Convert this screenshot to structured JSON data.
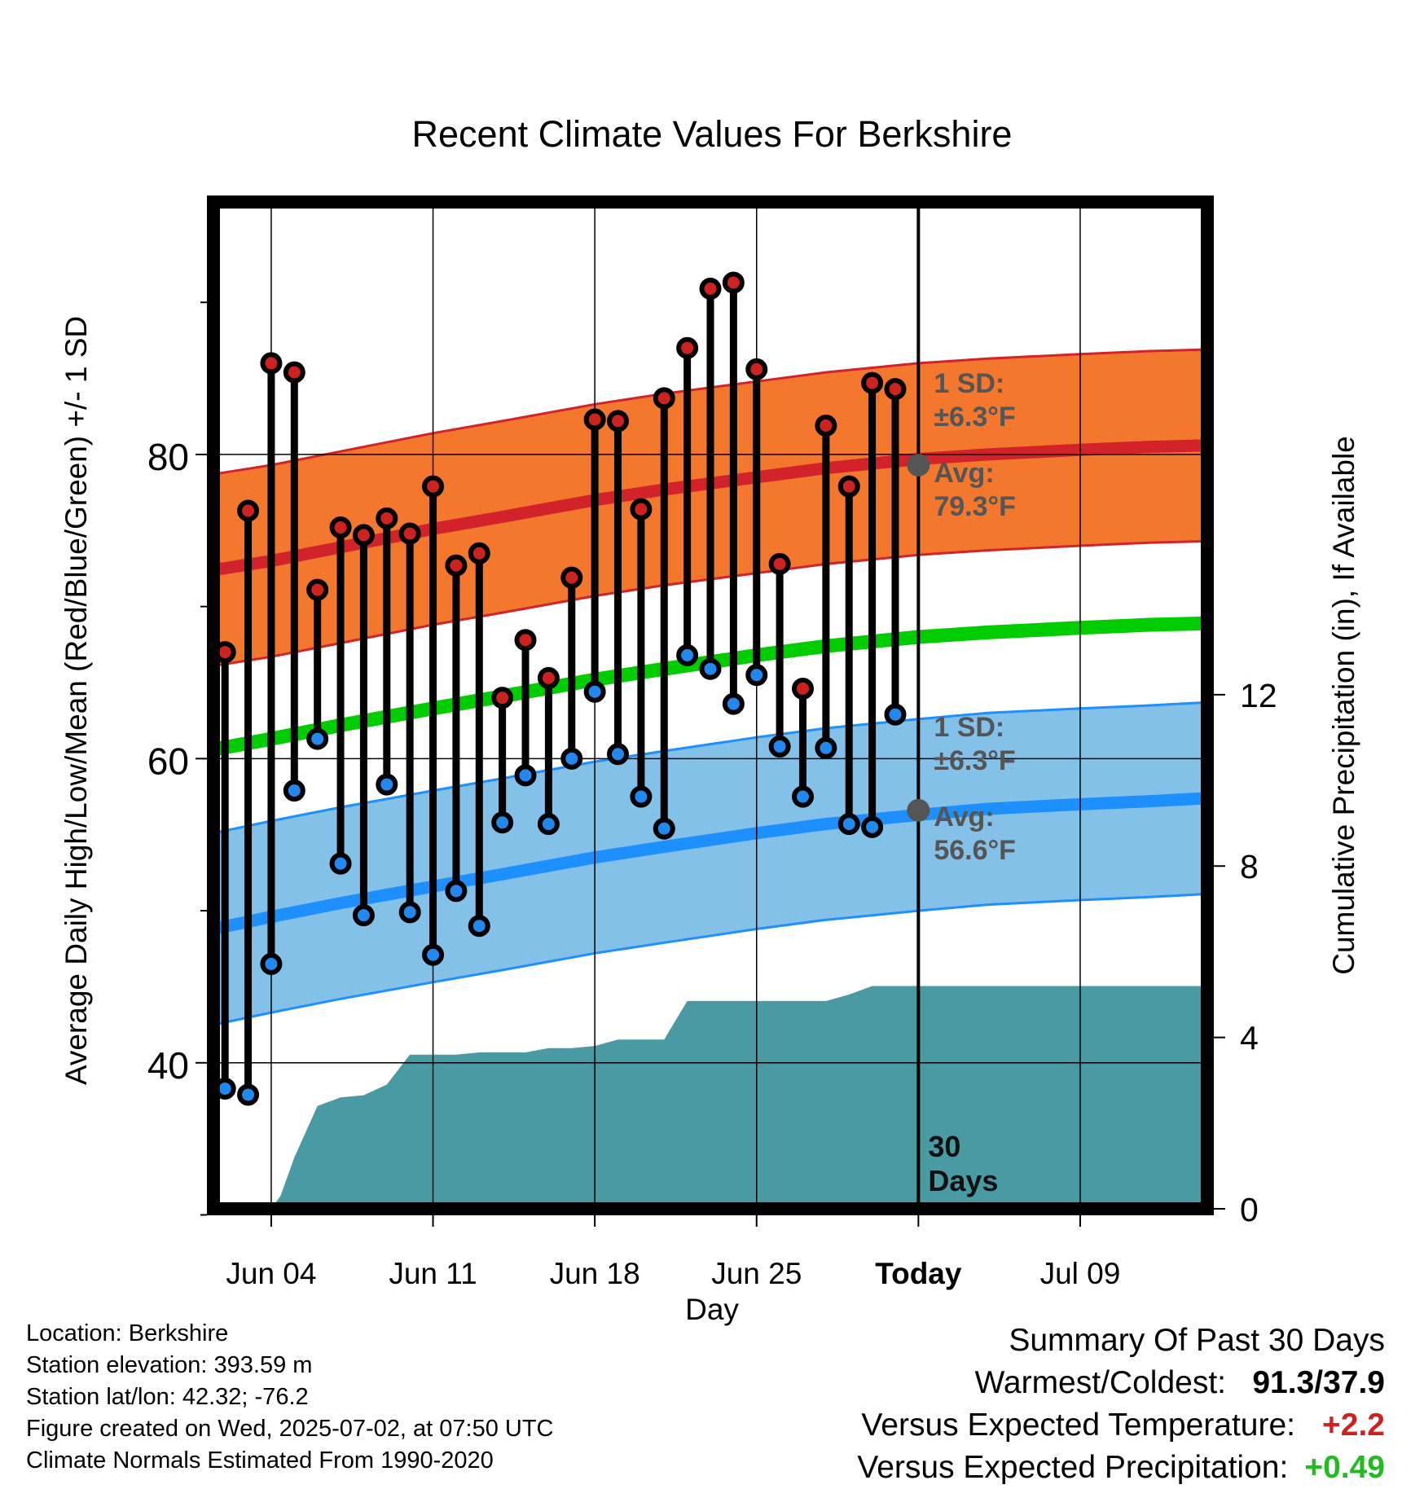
{
  "chart_data": {
    "type": "line",
    "title": "Recent Climate Values For Berkshire",
    "xlabel": "Day",
    "ylabel_left": "Average Daily High/Low/Mean (Red/Blue/Green) +/- 1 SD",
    "ylabel_right": "Cumulative Precipitation (in), If Available",
    "xlim": [
      -2.5,
      40.5
    ],
    "x_ticks": [
      {
        "x": 0,
        "label": "Jun 04"
      },
      {
        "x": 7,
        "label": "Jun 11"
      },
      {
        "x": 14,
        "label": "Jun 18"
      },
      {
        "x": 21,
        "label": "Jun 25"
      },
      {
        "x": 28,
        "label": "Today"
      },
      {
        "x": 35,
        "label": "Jul 09"
      }
    ],
    "today_x": 28,
    "ylim_left": [
      30.4,
      96.6
    ],
    "y_ticks_left": [
      40,
      60,
      80
    ],
    "y_minor_left": [
      30,
      50,
      70,
      90
    ],
    "ylim_right": [
      0,
      23.5
    ],
    "y_ticks_right": [
      0,
      4,
      8,
      12
    ],
    "grid": true,
    "normals": {
      "x": [
        -2.5,
        0,
        3,
        7,
        10,
        14,
        17,
        21,
        24,
        28,
        31,
        35,
        38,
        40.5
      ],
      "mean": [
        60.6,
        61.3,
        62.2,
        63.3,
        64.1,
        65.2,
        65.9,
        66.8,
        67.4,
        68.0,
        68.3,
        68.6,
        68.8,
        68.9
      ],
      "high": [
        72.4,
        73.0,
        73.9,
        75.1,
        75.9,
        77.0,
        77.7,
        78.5,
        79.1,
        79.7,
        80.0,
        80.3,
        80.5,
        80.6
      ],
      "low": [
        48.8,
        49.6,
        50.5,
        51.6,
        52.4,
        53.5,
        54.2,
        55.1,
        55.7,
        56.3,
        56.7,
        57.0,
        57.2,
        57.4
      ],
      "sd": 6.3
    },
    "observations": {
      "x": [
        -2,
        -1,
        0,
        1,
        2,
        3,
        4,
        5,
        6,
        7,
        8,
        9,
        10,
        11,
        12,
        13,
        14,
        15,
        16,
        17,
        18,
        19,
        20,
        21,
        22,
        23,
        24,
        25,
        26,
        27
      ],
      "high": [
        67.0,
        76.3,
        86.0,
        85.4,
        71.1,
        75.2,
        74.7,
        75.8,
        74.8,
        77.9,
        72.7,
        73.5,
        64.0,
        67.8,
        65.3,
        71.9,
        82.3,
        82.2,
        76.4,
        83.7,
        87.0,
        90.9,
        91.3,
        85.6,
        72.8,
        64.6,
        81.9,
        77.9,
        84.7,
        84.3
      ],
      "low": [
        38.3,
        37.9,
        46.5,
        57.9,
        61.3,
        53.1,
        49.7,
        58.3,
        49.9,
        47.1,
        51.3,
        49.0,
        55.8,
        58.9,
        55.7,
        60.0,
        64.4,
        60.3,
        57.5,
        55.4,
        66.8,
        65.9,
        63.6,
        65.5,
        60.8,
        57.5,
        60.7,
        55.7,
        55.5,
        62.9
      ]
    },
    "precipitation": {
      "x": [
        0,
        0.4,
        1,
        2,
        3,
        4,
        5,
        6,
        7,
        8,
        9,
        10,
        11,
        12,
        13,
        14,
        15,
        16,
        17,
        18,
        19,
        20,
        21,
        22,
        23,
        24,
        25,
        26,
        27,
        28,
        29,
        30,
        31,
        32,
        33,
        34,
        35,
        36,
        37,
        38,
        39,
        40.5
      ],
      "cumulative": [
        0,
        0.3,
        1.2,
        2.4,
        2.6,
        2.65,
        2.9,
        3.6,
        3.6,
        3.6,
        3.65,
        3.65,
        3.65,
        3.75,
        3.75,
        3.8,
        3.95,
        3.95,
        3.95,
        4.85,
        4.85,
        4.85,
        4.85,
        4.85,
        4.85,
        4.85,
        5.0,
        5.2,
        5.2,
        5.2,
        5.2,
        5.2,
        5.2,
        5.2,
        5.2,
        5.2,
        5.2,
        5.2,
        5.2,
        5.2,
        5.2,
        5.2
      ]
    },
    "annotations": {
      "high_sd": "1 SD:",
      "high_sd_value": "±6.3°F",
      "high_avg": "Avg:",
      "high_avg_value": "79.3°F",
      "low_sd": "1 SD:",
      "low_sd_value": "±6.3°F",
      "low_avg": "Avg:",
      "low_avg_value": "56.6°F",
      "period_num": "30",
      "period_word": "Days"
    },
    "colors": {
      "high_band": "#f4772e",
      "high_line": "#d2232a",
      "low_band": "#83c1e9",
      "low_line": "#1e8fff",
      "mean_line": "#00cc00",
      "precip": "#4a9aa3",
      "high_marker": "#cc2222",
      "low_marker": "#2288ee",
      "annotation": "#555555"
    }
  },
  "info": {
    "location": "Location: Berkshire",
    "elevation": "Station elevation: 393.59 m",
    "latlon": "Station lat/lon: 42.32; -76.2",
    "created": "Figure created on Wed, 2025-07-02, at 07:50 UTC",
    "normals": "Climate Normals Estimated From 1990-2020"
  },
  "summary": {
    "title": "Summary Of Past 30 Days",
    "warm_cold_label": "Warmest/Coldest:",
    "warm_cold_value": "91.3/37.9",
    "temp_label": "Versus Expected Temperature:",
    "temp_value": "+2.2",
    "temp_color": "#cc2222",
    "precip_label": "Versus Expected Precipitation:",
    "precip_value": "+0.49",
    "precip_color": "#22bb22"
  }
}
